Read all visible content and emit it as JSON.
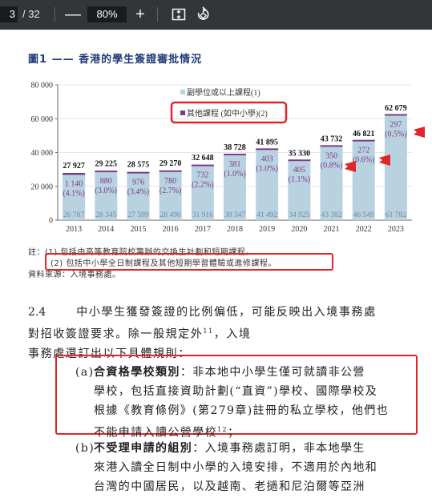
{
  "toolbar": {
    "page_current": "3",
    "page_total": "/ 32",
    "zoom_out": "—",
    "zoom": "80%",
    "zoom_in": "+"
  },
  "figure": {
    "title": "圖1 —— 香港的學生簽證審批情況"
  },
  "chart_data": {
    "type": "bar",
    "stacked": true,
    "categories": [
      "2013",
      "2014",
      "2015",
      "2016",
      "2017",
      "2018",
      "2019",
      "2020",
      "2021",
      "2022",
      "2023"
    ],
    "series": [
      {
        "name": "副學位或以上課程(1)",
        "values": [
          26787,
          28345,
          27599,
          28490,
          31916,
          38347,
          41492,
          34925,
          43382,
          46549,
          61782
        ]
      },
      {
        "name": "其他課程 (如中小學)(2)",
        "values": [
          1140,
          880,
          976,
          780,
          732,
          381,
          403,
          405,
          350,
          272,
          297
        ]
      }
    ],
    "totals": [
      "27 927",
      "29 225",
      "28 575",
      "29 270",
      "32 648",
      "38 728",
      "41 895",
      "35 330",
      "43 732",
      "46 821",
      "62 079"
    ],
    "base_labels": [
      "26 787",
      "28 345",
      "27 599",
      "28 490",
      "31 916",
      "38 347",
      "41 492",
      "34 925",
      "43 382",
      "46 549",
      "61 782"
    ],
    "other_labels": [
      "1 140",
      "880",
      "976",
      "780",
      "732",
      "381",
      "403",
      "405",
      "350",
      "272",
      "297"
    ],
    "other_pct": [
      "(4.1%)",
      "(3.0%)",
      "(3.4%)",
      "(2.7%)",
      "(2.2%)",
      "(1.0%)",
      "(1.0%)",
      "(1.1%)",
      "(0.8%)",
      "(0.6%)",
      "(0.5%)"
    ],
    "yticks": [
      "0",
      "20 000",
      "40 000",
      "60 000",
      "80 000"
    ],
    "ylim": [
      0,
      80000
    ],
    "legend_placement": "top-center",
    "colors": {
      "base": "#b9d2e0",
      "other": "#7b3a8a",
      "red": "#e0262b",
      "title": "#1f3b7a"
    }
  },
  "notes": {
    "n1": "註：(1)  包括由高等教育院校籌辦的交換生計劃和短期課程。",
    "n2": "(2)  包括中小學全日制課程及其他短期學習體驗或進修課程。",
    "source": "資料來源：入境事務處。"
  },
  "para": {
    "num": "2.4",
    "line1": "中小學生獲發簽證的比例偏低，可能反映出入境事務處",
    "line2a": "對招收簽證要求。除一般規定外",
    "line2b": "11",
    "line2c": "，入境",
    "line3": "事務處還訂出以下具體規則：",
    "line2pre": "對招收簽證要求。"
  },
  "item_a": {
    "label": "(a)",
    "bold": "合資格學校類別",
    "l1": "：非本地中小學生僅可就讀非公營",
    "l2": "學校，包括直接資助計劃(“直資”)學校、國際學校及",
    "l3": "根據《教育條例》(第279章)註冊的私立學校，他們也",
    "l4a": "不能申請入讀公營學校",
    "l4b": "12",
    "l4c": "；"
  },
  "item_b": {
    "label": "(b)",
    "bold": "不受理申請的組別",
    "l1": "：入境事務處訂明，非本地學生",
    "l2": "來港入讀全日制中小學的入境安排，不適用於內地和",
    "l3": "台灣的中國居民，以及越南、老撾和尼泊爾等亞洲"
  }
}
